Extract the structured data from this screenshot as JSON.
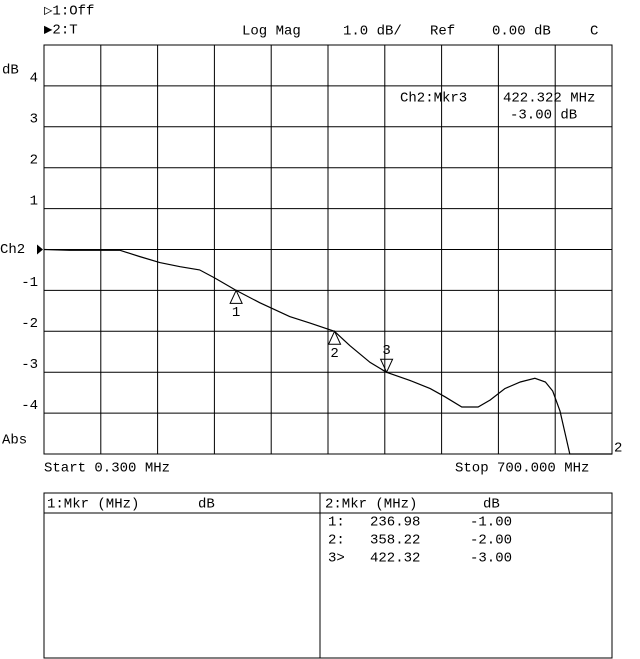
{
  "header": {
    "ch1": "▷1:Off",
    "ch2": "▶2:T",
    "format": "Log Mag",
    "scale": "1.0 dB/",
    "ref": "Ref",
    "ref_value": "0.00 dB",
    "flag": "C"
  },
  "chart_data": {
    "type": "line",
    "y_unit": "dB",
    "y_mode": "Abs",
    "start": "Start 0.300 MHz",
    "stop": "Stop 700.000 MHz",
    "xlim": [
      0.3,
      700
    ],
    "ylim": [
      -5,
      5
    ],
    "yticks": [
      -4,
      -3,
      -2,
      -1,
      {
        "value": 0,
        "label": "Ch2"
      },
      1,
      2,
      3,
      4
    ],
    "x": [
      0.3,
      32,
      69,
      94,
      118,
      143,
      168,
      192,
      211,
      237,
      266,
      303,
      328,
      358,
      377,
      402,
      422,
      451,
      476,
      494,
      515,
      535,
      550,
      568,
      587,
      605,
      618,
      627,
      636,
      643,
      648,
      700
    ],
    "series": [
      {
        "name": "2",
        "color": "#000000",
        "values": [
          0,
          -0.02,
          -0.02,
          -0.02,
          -0.17,
          -0.32,
          -0.42,
          -0.5,
          -0.7,
          -1.0,
          -1.3,
          -1.64,
          -1.8,
          -2.0,
          -2.35,
          -2.76,
          -3.0,
          -3.2,
          -3.4,
          -3.6,
          -3.85,
          -3.85,
          -3.68,
          -3.4,
          -3.24,
          -3.15,
          -3.24,
          -3.46,
          -3.95,
          -4.56,
          -5.0,
          -5.0
        ]
      }
    ],
    "markers": [
      {
        "name": "1",
        "id": "1:",
        "x": 236.98,
        "y": -1,
        "x_label": "236.98",
        "y_label": "-1.00"
      },
      {
        "name": "2",
        "id": "2:",
        "x": 358.22,
        "y": -2,
        "x_label": "358.22",
        "y_label": "-2.00"
      },
      {
        "name": "3",
        "id": "3>",
        "x": 422.32,
        "y": -3,
        "x_label": "422.32",
        "y_label": "-3.00",
        "active": true
      }
    ],
    "annotation": {
      "marker": "Ch2:Mkr3",
      "freq": "422.322 MHz",
      "value": "-3.00 dB"
    }
  },
  "marker_table": {
    "left_header": "1:Mkr (MHz)",
    "left_unit": "dB",
    "right_header": "2:Mkr (MHz)",
    "right_unit": "dB"
  }
}
